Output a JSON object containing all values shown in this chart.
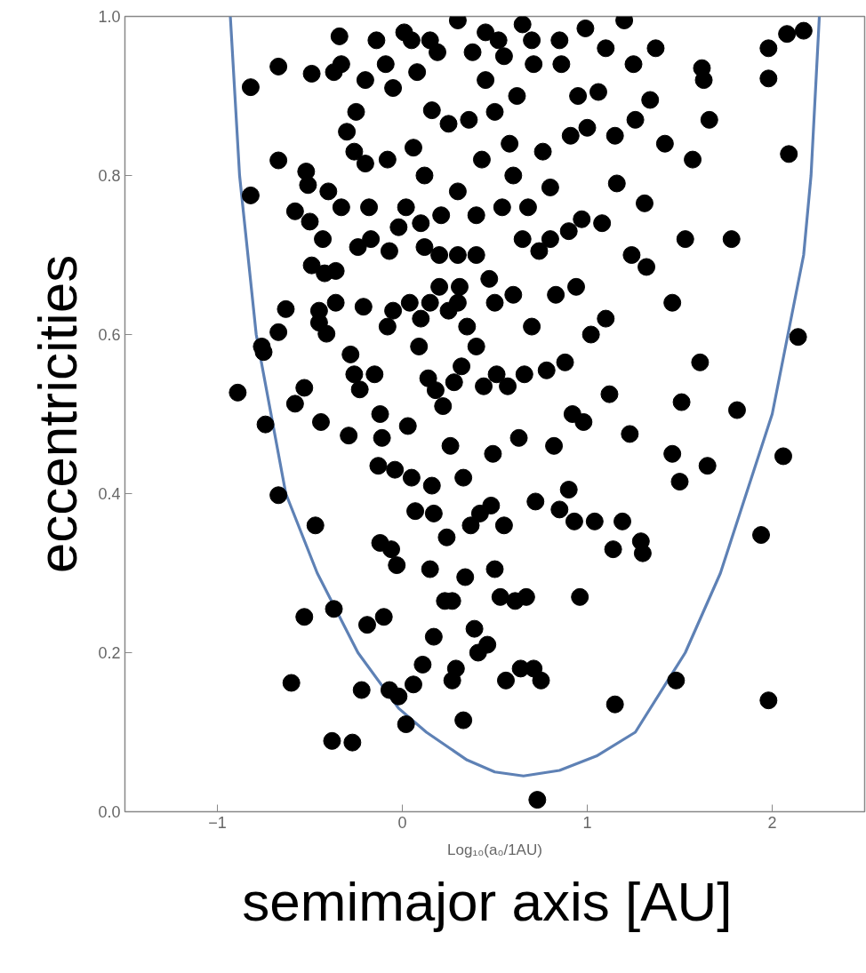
{
  "chart_data": {
    "type": "scatter",
    "xlabel": "semimajor axis  [AU]",
    "ylabel": "eccentricities",
    "annotations": [
      "Log₁₀(a₀/1AU)"
    ],
    "xlim": [
      -1.5,
      2.5
    ],
    "ylim": [
      0,
      1
    ],
    "xticks": [
      -1,
      0,
      1,
      2
    ],
    "yticks": [
      {
        "value": 0,
        "label": "0.0"
      },
      {
        "value": 0.2,
        "label": "0.2"
      },
      {
        "value": 0.4,
        "label": "0.4"
      },
      {
        "value": 0.6,
        "label": "0.6"
      },
      {
        "value": 0.8,
        "label": "0.8"
      },
      {
        "value": 1,
        "label": "1.0"
      }
    ],
    "grid": false,
    "series": [
      {
        "type": "scatter",
        "marker": "circle",
        "color": "#000000",
        "x": [
          -0.89,
          -0.82,
          -0.82,
          -0.76,
          -0.75,
          -0.74,
          -0.67,
          -0.67,
          -0.67,
          -0.63,
          -0.67,
          -0.6,
          -0.58,
          -0.58,
          -0.53,
          -0.53,
          -0.52,
          -0.51,
          -0.5,
          -0.49,
          -0.49,
          -0.47,
          -0.45,
          -0.45,
          -0.44,
          -0.43,
          -0.42,
          -0.41,
          -0.4,
          -0.38,
          -0.37,
          -0.37,
          -0.36,
          -0.36,
          -0.34,
          -0.33,
          -0.33,
          -0.3,
          -0.29,
          -0.28,
          -0.27,
          -0.26,
          -0.26,
          -0.25,
          -0.24,
          -0.23,
          -0.22,
          -0.21,
          -0.2,
          -0.2,
          -0.19,
          -0.18,
          -0.17,
          -0.15,
          -0.14,
          -0.13,
          -0.12,
          -0.12,
          -0.11,
          -0.1,
          -0.09,
          -0.08,
          -0.08,
          -0.07,
          -0.07,
          -0.06,
          -0.05,
          -0.05,
          -0.04,
          -0.03,
          -0.02,
          -0.02,
          0.01,
          0.02,
          0.02,
          0.03,
          0.04,
          0.05,
          0.06,
          0.06,
          0.07,
          0.08,
          0.09,
          0.1,
          0.11,
          0.12,
          0.12,
          0.14,
          0.15,
          0.16,
          0.16,
          0.17,
          0.17,
          0.18,
          0.19,
          0.2,
          0.21,
          0.22,
          0.23,
          0.24,
          0.25,
          0.25,
          0.26,
          0.27,
          0.27,
          0.28,
          0.29,
          0.3,
          0.3,
          0.31,
          0.32,
          0.33,
          0.33,
          0.34,
          0.35,
          0.36,
          0.37,
          0.38,
          0.39,
          0.4,
          0.4,
          0.41,
          0.42,
          0.43,
          0.44,
          0.45,
          0.46,
          0.47,
          0.48,
          0.49,
          0.5,
          0.51,
          0.52,
          0.53,
          0.54,
          0.55,
          0.56,
          0.57,
          0.58,
          0.6,
          0.61,
          0.62,
          0.63,
          0.64,
          0.66,
          0.67,
          0.68,
          0.7,
          0.71,
          0.71,
          0.72,
          0.73,
          0.74,
          0.75,
          0.76,
          0.78,
          0.8,
          0.82,
          0.83,
          0.85,
          0.86,
          0.88,
          0.9,
          0.91,
          0.92,
          0.93,
          0.94,
          0.96,
          0.97,
          0.98,
          0.99,
          1.02,
          1.04,
          1.06,
          1.08,
          1.1,
          1.12,
          1.14,
          1.15,
          1.16,
          1.19,
          1.2,
          1.23,
          1.24,
          1.26,
          1.29,
          1.3,
          1.31,
          1.32,
          1.34,
          1.37,
          1.42,
          1.46,
          1.46,
          1.48,
          1.5,
          1.51,
          1.53,
          1.57,
          1.61,
          1.62,
          1.63,
          1.65,
          1.66,
          1.78,
          1.81,
          1.94,
          1.98,
          1.98,
          1.98,
          2.06,
          2.08,
          2.09,
          2.14,
          2.17,
          0.05,
          0.15,
          0.45,
          0.55,
          0.65,
          0.7,
          0.85,
          0.95,
          1.0,
          1.1,
          1.15,
          1.25,
          0.5,
          0.6,
          0.4,
          0.3,
          0.2,
          0.1,
          0.15,
          0.3,
          0.5,
          0.65,
          0.8,
          0.9
        ],
        "values": [
          0.527,
          0.775,
          0.911,
          0.585,
          0.578,
          0.487,
          0.398,
          0.819,
          0.937,
          0.632,
          0.603,
          0.162,
          0.513,
          0.755,
          0.533,
          0.245,
          0.805,
          0.788,
          0.742,
          0.687,
          0.928,
          0.36,
          0.63,
          0.615,
          0.49,
          0.72,
          0.677,
          0.601,
          0.78,
          0.089,
          0.255,
          0.93,
          0.68,
          0.64,
          0.975,
          0.94,
          0.76,
          0.855,
          0.473,
          0.575,
          0.087,
          0.55,
          0.83,
          0.88,
          0.71,
          0.531,
          0.153,
          0.635,
          0.815,
          0.92,
          0.235,
          0.76,
          0.72,
          0.55,
          0.97,
          0.435,
          0.338,
          0.5,
          0.47,
          0.245,
          0.94,
          0.61,
          0.82,
          0.153,
          0.705,
          0.33,
          0.63,
          0.91,
          0.43,
          0.31,
          0.145,
          0.735,
          0.98,
          0.11,
          0.76,
          0.485,
          0.64,
          0.42,
          0.16,
          0.835,
          0.378,
          0.93,
          0.585,
          0.62,
          0.185,
          0.71,
          0.8,
          0.545,
          0.305,
          0.41,
          0.882,
          0.22,
          0.375,
          0.53,
          0.955,
          0.66,
          0.75,
          0.51,
          0.265,
          0.345,
          0.865,
          0.63,
          0.46,
          0.165,
          0.265,
          0.54,
          0.18,
          0.995,
          0.78,
          0.66,
          0.56,
          0.42,
          0.115,
          0.295,
          0.61,
          0.87,
          0.36,
          0.955,
          0.23,
          0.585,
          0.75,
          0.2,
          0.375,
          0.82,
          0.535,
          0.92,
          0.21,
          0.67,
          0.385,
          0.45,
          0.305,
          0.55,
          0.97,
          0.27,
          0.76,
          0.36,
          0.165,
          0.535,
          0.84,
          0.65,
          0.265,
          0.9,
          0.47,
          0.18,
          0.55,
          0.27,
          0.76,
          0.61,
          0.18,
          0.94,
          0.39,
          0.015,
          0.705,
          0.165,
          0.83,
          0.555,
          0.785,
          0.46,
          0.65,
          0.38,
          0.94,
          0.565,
          0.405,
          0.85,
          0.5,
          0.365,
          0.66,
          0.27,
          0.745,
          0.49,
          0.985,
          0.6,
          0.365,
          0.905,
          0.74,
          0.62,
          0.525,
          0.33,
          0.135,
          0.79,
          0.365,
          0.995,
          0.475,
          0.7,
          0.87,
          0.34,
          0.325,
          0.765,
          0.685,
          0.895,
          0.96,
          0.84,
          0.64,
          0.45,
          0.165,
          0.415,
          0.515,
          0.72,
          0.82,
          0.565,
          0.935,
          0.92,
          0.435,
          0.87,
          0.72,
          0.505,
          0.348,
          0.14,
          0.96,
          0.922,
          0.447,
          0.978,
          0.827,
          0.597,
          0.982,
          0.97,
          0.97,
          0.98,
          0.95,
          0.99,
          0.97,
          0.97,
          0.9,
          0.86,
          0.96,
          0.85,
          0.94,
          0.88,
          0.8,
          0.7,
          0.7,
          0.7,
          0.74,
          0.64,
          0.64,
          0.64,
          0.72,
          0.72,
          0.73
        ]
      },
      {
        "type": "line",
        "color": "#5e81b5",
        "x": [
          -0.93,
          -0.88,
          -0.79,
          -0.63,
          -0.46,
          -0.24,
          -0.02,
          0.13,
          0.35,
          0.5,
          0.655,
          0.85,
          1.05,
          1.26,
          1.53,
          1.72,
          1.86,
          2.0,
          2.17,
          2.21,
          2.255
        ],
        "values": [
          1.0,
          0.8,
          0.6,
          0.4,
          0.3,
          0.2,
          0.13,
          0.1,
          0.065,
          0.05,
          0.045,
          0.052,
          0.07,
          0.1,
          0.2,
          0.3,
          0.4,
          0.5,
          0.7,
          0.8,
          1.0
        ]
      }
    ]
  }
}
